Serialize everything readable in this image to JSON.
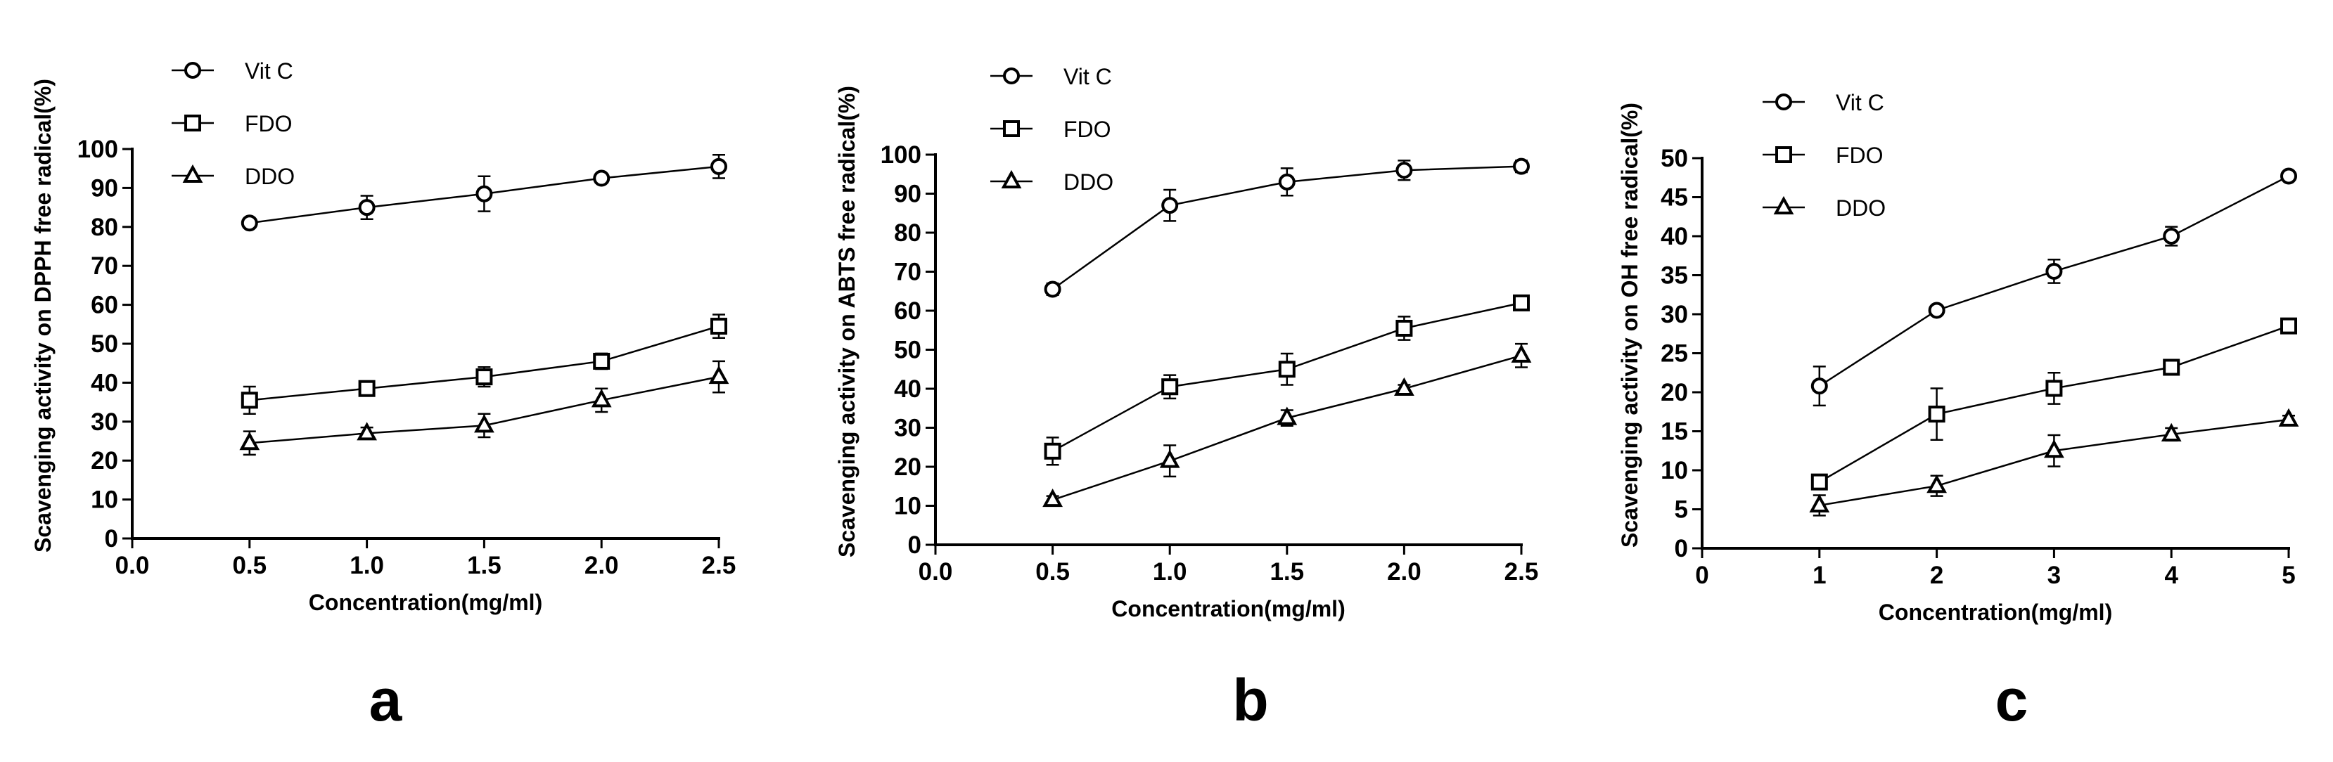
{
  "figure": {
    "panels": [
      "a",
      "b",
      "c"
    ]
  },
  "chart_data": [
    {
      "type": "line",
      "panel_label": "a",
      "title": "",
      "xlabel": "Concentration(mg/ml)",
      "ylabel": "Scavenging activity on DPPH free radical(%)",
      "xlim": [
        0,
        2.5
      ],
      "ylim": [
        0,
        100
      ],
      "xticks": [
        0,
        0.5,
        1.0,
        1.5,
        2.0,
        2.5
      ],
      "xtick_labels": [
        "0.0",
        "0.5",
        "1.0",
        "1.5",
        "2.0",
        "2.5"
      ],
      "yticks": [
        0,
        10,
        20,
        30,
        40,
        50,
        60,
        70,
        80,
        90,
        100
      ],
      "ytick_labels": [
        "0",
        "10",
        "20",
        "30",
        "40",
        "50",
        "60",
        "70",
        "80",
        "90",
        "100"
      ],
      "x": [
        0.5,
        1.0,
        1.5,
        2.0,
        2.5
      ],
      "legend_position": "top-left",
      "series": [
        {
          "name": "Vit C",
          "marker": "circle",
          "values": [
            81,
            85,
            88.5,
            92.5,
            95.5
          ],
          "errors": [
            1,
            3,
            4.5,
            1,
            3
          ]
        },
        {
          "name": "FDO",
          "marker": "square",
          "values": [
            35.5,
            38.5,
            41.5,
            45.5,
            54.5
          ],
          "errors": [
            3.5,
            1.5,
            2.5,
            2,
            3
          ]
        },
        {
          "name": "DDO",
          "marker": "triangle",
          "values": [
            24.5,
            27,
            29,
            35.5,
            41.5
          ],
          "errors": [
            3,
            1.5,
            3,
            3,
            4
          ]
        }
      ]
    },
    {
      "type": "line",
      "panel_label": "b",
      "title": "",
      "xlabel": "Concentration(mg/ml)",
      "ylabel": "Scavenging activity on ABTS free radical(%)",
      "xlim": [
        0,
        2.5
      ],
      "ylim": [
        0,
        100
      ],
      "xticks": [
        0,
        0.5,
        1.0,
        1.5,
        2.0,
        2.5
      ],
      "xtick_labels": [
        "0.0",
        "0.5",
        "1.0",
        "1.5",
        "2.0",
        "2.5"
      ],
      "yticks": [
        0,
        10,
        20,
        30,
        40,
        50,
        60,
        70,
        80,
        90,
        100
      ],
      "ytick_labels": [
        "0",
        "10",
        "20",
        "30",
        "40",
        "50",
        "60",
        "70",
        "80",
        "90",
        "100"
      ],
      "x": [
        0.5,
        1.0,
        1.5,
        2.0,
        2.5
      ],
      "legend_position": "top-left",
      "series": [
        {
          "name": "Vit C",
          "marker": "circle",
          "values": [
            65.5,
            87,
            93,
            96,
            97
          ],
          "errors": [
            1.5,
            4,
            3.5,
            2.5,
            1.5
          ]
        },
        {
          "name": "FDO",
          "marker": "square",
          "values": [
            24,
            40.5,
            45,
            55.5,
            62
          ],
          "errors": [
            3.5,
            3,
            4,
            3,
            1.5
          ]
        },
        {
          "name": "DDO",
          "marker": "triangle",
          "values": [
            11.5,
            21.5,
            32.5,
            40,
            48.5
          ],
          "errors": [
            1,
            4,
            2,
            1,
            3
          ]
        }
      ]
    },
    {
      "type": "line",
      "panel_label": "c",
      "title": "",
      "xlabel": "Concentration(mg/ml)",
      "ylabel": "Scavenging activity on OH free radical(%)",
      "xlim": [
        0,
        5
      ],
      "ylim": [
        0,
        50
      ],
      "xticks": [
        0,
        1,
        2,
        3,
        4,
        5
      ],
      "xtick_labels": [
        "0",
        "1",
        "2",
        "3",
        "4",
        "5"
      ],
      "yticks": [
        0,
        5,
        10,
        15,
        20,
        25,
        30,
        35,
        40,
        45,
        50
      ],
      "ytick_labels": [
        "0",
        "5",
        "10",
        "15",
        "20",
        "25",
        "30",
        "35",
        "40",
        "45",
        "50"
      ],
      "x": [
        1,
        2,
        3,
        4,
        5
      ],
      "legend_position": "top-left",
      "series": [
        {
          "name": "Vit C",
          "marker": "circle",
          "values": [
            20.8,
            30.5,
            35.5,
            40,
            47.7
          ],
          "errors": [
            2.5,
            0.5,
            1.5,
            1.2,
            0.5
          ]
        },
        {
          "name": "FDO",
          "marker": "square",
          "values": [
            8.5,
            17.2,
            20.5,
            23.2,
            28.5
          ],
          "errors": [
            0.7,
            3.3,
            2,
            0.5,
            0.8
          ]
        },
        {
          "name": "DDO",
          "marker": "triangle",
          "values": [
            5.5,
            8,
            12.5,
            14.6,
            16.5
          ],
          "errors": [
            1.3,
            1.3,
            2,
            0.8,
            0.5
          ]
        }
      ]
    }
  ]
}
